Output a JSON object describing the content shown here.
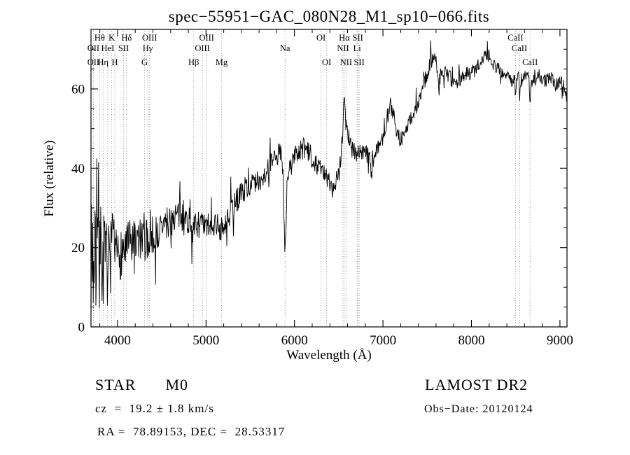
{
  "chart_data": {
    "type": "line",
    "title": "spec−55951−GAC_080N28_M1_sp10−066.fits",
    "xlabel": "Wavelength (Å)",
    "ylabel": "Flux (relative)",
    "xlim": [
      3700,
      9080
    ],
    "ylim": [
      0,
      75
    ],
    "x_ticks": [
      4000,
      5000,
      6000,
      7000,
      8000,
      9000
    ],
    "y_ticks": [
      0,
      20,
      40,
      60
    ],
    "x_minor_step": 200,
    "y_minor_step": 5,
    "grid": false,
    "legend": "none",
    "spectral_lines": [
      {
        "wavelength": 3727,
        "label": "OII",
        "row": 2
      },
      {
        "wavelength": 3727,
        "label": "OII",
        "row": 3
      },
      {
        "wavelength": 3798,
        "label": "Hθ",
        "row": 1
      },
      {
        "wavelength": 3836,
        "label": "Hη",
        "row": 3
      },
      {
        "wavelength": 3889,
        "label": "HeI",
        "row": 2
      },
      {
        "wavelength": 3934,
        "label": "K",
        "row": 1
      },
      {
        "wavelength": 3969,
        "label": "H",
        "row": 3
      },
      {
        "wavelength": 4068,
        "label": "SII",
        "row": 2
      },
      {
        "wavelength": 4102,
        "label": "Hδ",
        "row": 1
      },
      {
        "wavelength": 4305,
        "label": "G",
        "row": 3
      },
      {
        "wavelength": 4341,
        "label": "Hγ",
        "row": 2
      },
      {
        "wavelength": 4363,
        "label": "OIII",
        "row": 1
      },
      {
        "wavelength": 4861,
        "label": "Hβ",
        "row": 3
      },
      {
        "wavelength": 4959,
        "label": "OIII",
        "row": 2
      },
      {
        "wavelength": 5007,
        "label": "OIII",
        "row": 1
      },
      {
        "wavelength": 5175,
        "label": "Mg",
        "row": 3
      },
      {
        "wavelength": 5893,
        "label": "Na",
        "row": 2
      },
      {
        "wavelength": 6300,
        "label": "OI",
        "row": 1
      },
      {
        "wavelength": 6363,
        "label": "OI",
        "row": 3
      },
      {
        "wavelength": 6548,
        "label": "NII",
        "row": 2
      },
      {
        "wavelength": 6563,
        "label": "Hα",
        "row": 1
      },
      {
        "wavelength": 6583,
        "label": "NII",
        "row": 3
      },
      {
        "wavelength": 6708,
        "label": "Li",
        "row": 2
      },
      {
        "wavelength": 6716,
        "label": "SII",
        "row": 1
      },
      {
        "wavelength": 6731,
        "label": "SII",
        "row": 3
      },
      {
        "wavelength": 8498,
        "label": "CaII",
        "row": 1
      },
      {
        "wavelength": 8542,
        "label": "CaII",
        "row": 2
      },
      {
        "wavelength": 8662,
        "label": "CaII",
        "row": 3
      }
    ],
    "continuum_points": [
      [
        3700,
        26
      ],
      [
        3715,
        20
      ],
      [
        3730,
        16
      ],
      [
        3745,
        14
      ],
      [
        3760,
        18
      ],
      [
        3775,
        22
      ],
      [
        3790,
        20
      ],
      [
        3805,
        18
      ],
      [
        3820,
        16
      ],
      [
        3835,
        18
      ],
      [
        3850,
        17
      ],
      [
        3865,
        15
      ],
      [
        3880,
        16
      ],
      [
        3900,
        16
      ],
      [
        3920,
        18
      ],
      [
        3940,
        20
      ],
      [
        3960,
        19
      ],
      [
        3980,
        17
      ],
      [
        4000,
        18
      ],
      [
        4050,
        19
      ],
      [
        4100,
        20
      ],
      [
        4150,
        21
      ],
      [
        4200,
        21
      ],
      [
        4250,
        22
      ],
      [
        4300,
        21
      ],
      [
        4350,
        22
      ],
      [
        4400,
        23
      ],
      [
        4450,
        24
      ],
      [
        4500,
        25
      ],
      [
        4550,
        26
      ],
      [
        4600,
        27
      ],
      [
        4650,
        28
      ],
      [
        4700,
        28
      ],
      [
        4750,
        27
      ],
      [
        4800,
        27
      ],
      [
        4830,
        26
      ],
      [
        4861,
        24
      ],
      [
        4890,
        26
      ],
      [
        4930,
        26
      ],
      [
        4970,
        25
      ],
      [
        5000,
        25
      ],
      [
        5050,
        26
      ],
      [
        5100,
        26
      ],
      [
        5150,
        25
      ],
      [
        5200,
        24
      ],
      [
        5250,
        27
      ],
      [
        5300,
        30
      ],
      [
        5350,
        32
      ],
      [
        5400,
        34
      ],
      [
        5450,
        35
      ],
      [
        5500,
        36
      ],
      [
        5550,
        36
      ],
      [
        5600,
        37
      ],
      [
        5650,
        38
      ],
      [
        5700,
        40
      ],
      [
        5750,
        41
      ],
      [
        5800,
        43
      ],
      [
        5840,
        44
      ],
      [
        5868,
        41
      ],
      [
        5893,
        18
      ],
      [
        5918,
        37
      ],
      [
        5950,
        40
      ],
      [
        6000,
        43
      ],
      [
        6050,
        44
      ],
      [
        6100,
        45
      ],
      [
        6150,
        44
      ],
      [
        6200,
        43
      ],
      [
        6250,
        41
      ],
      [
        6300,
        40
      ],
      [
        6350,
        38
      ],
      [
        6400,
        36
      ],
      [
        6450,
        36
      ],
      [
        6500,
        39
      ],
      [
        6530,
        44
      ],
      [
        6550,
        52
      ],
      [
        6563,
        60
      ],
      [
        6578,
        52
      ],
      [
        6610,
        48
      ],
      [
        6650,
        45
      ],
      [
        6700,
        44
      ],
      [
        6750,
        44
      ],
      [
        6800,
        44
      ],
      [
        6830,
        43
      ],
      [
        6855,
        43
      ],
      [
        6867,
        36
      ],
      [
        6882,
        42
      ],
      [
        6920,
        44
      ],
      [
        6960,
        46
      ],
      [
        7000,
        48
      ],
      [
        7040,
        52
      ],
      [
        7080,
        56
      ],
      [
        7120,
        54
      ],
      [
        7160,
        49
      ],
      [
        7200,
        47
      ],
      [
        7250,
        49
      ],
      [
        7300,
        52
      ],
      [
        7350,
        54
      ],
      [
        7400,
        56
      ],
      [
        7450,
        60
      ],
      [
        7500,
        64
      ],
      [
        7550,
        68
      ],
      [
        7600,
        69
      ],
      [
        7625,
        61
      ],
      [
        7655,
        64
      ],
      [
        7700,
        65
      ],
      [
        7750,
        63
      ],
      [
        7800,
        61
      ],
      [
        7850,
        62
      ],
      [
        7900,
        63
      ],
      [
        7950,
        64
      ],
      [
        8000,
        64
      ],
      [
        8050,
        65
      ],
      [
        8100,
        67
      ],
      [
        8150,
        69
      ],
      [
        8200,
        69
      ],
      [
        8250,
        66
      ],
      [
        8300,
        65
      ],
      [
        8350,
        64
      ],
      [
        8400,
        63
      ],
      [
        8450,
        62
      ],
      [
        8490,
        63
      ],
      [
        8498,
        57
      ],
      [
        8512,
        62
      ],
      [
        8535,
        63
      ],
      [
        8542,
        56
      ],
      [
        8557,
        62
      ],
      [
        8600,
        63
      ],
      [
        8650,
        63
      ],
      [
        8662,
        56
      ],
      [
        8677,
        62
      ],
      [
        8720,
        62
      ],
      [
        8760,
        63
      ],
      [
        8800,
        62
      ],
      [
        8850,
        62
      ],
      [
        8900,
        63
      ],
      [
        8950,
        61
      ],
      [
        9000,
        62
      ],
      [
        9040,
        61
      ],
      [
        9080,
        58
      ]
    ],
    "noise_profile": [
      [
        3700,
        17
      ],
      [
        3800,
        15
      ],
      [
        3900,
        10
      ],
      [
        4000,
        7
      ],
      [
        4200,
        6
      ],
      [
        4500,
        4.5
      ],
      [
        5000,
        3.5
      ],
      [
        5500,
        3
      ],
      [
        6000,
        2.8
      ],
      [
        6500,
        2.4
      ],
      [
        7000,
        2.2
      ],
      [
        7500,
        2
      ],
      [
        8000,
        1.8
      ],
      [
        8600,
        1.7
      ],
      [
        9080,
        1.6
      ]
    ]
  },
  "footer": {
    "object_type": "STAR",
    "subclass": "M0",
    "survey": "LAMOST DR2",
    "cz": "cz  =  19.2 ± 1.8 km/s",
    "obs_date": "Obs−Date: 20120124",
    "ra_dec": "RA =  78.89153, DEC =  28.53317"
  }
}
